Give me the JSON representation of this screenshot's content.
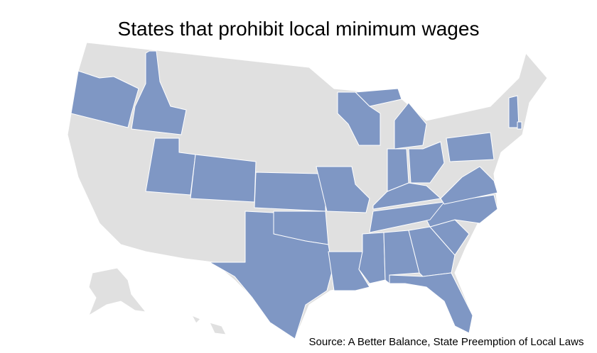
{
  "title": "States that prohibit local minimum wages",
  "source": "Source: A Better Balance, State Preemption of Local Laws",
  "base_color": "#e0e0e0",
  "highlight_color": "#7f97c4",
  "border_color": "#ffffff"
}
